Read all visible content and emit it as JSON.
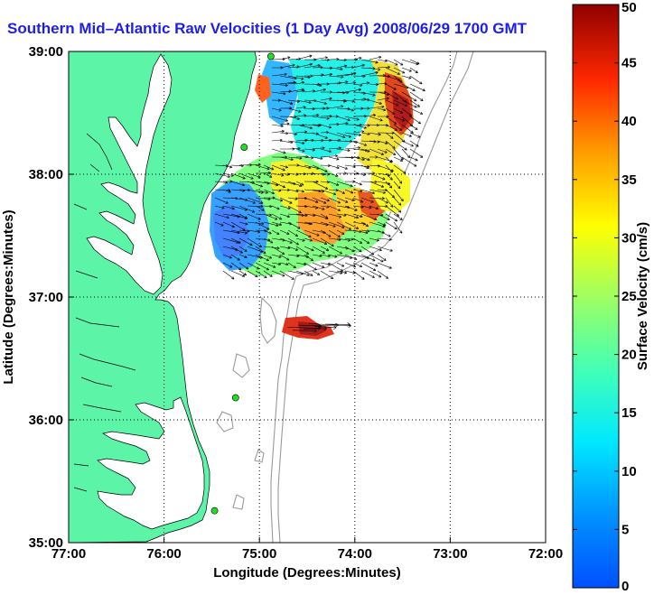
{
  "title": "Southern Mid–Atlantic Raw Velocities (1 Day Avg) 2008/06/29 1700 GMT",
  "map": {
    "xlabel": "Longitude (Degrees:Minutes)",
    "ylabel": "Latitude (Degrees:Minutes)",
    "lon_range": [
      -77,
      -72
    ],
    "lat_range": [
      35,
      39
    ],
    "x_ticks": [
      {
        "value": -77,
        "label": "77:00"
      },
      {
        "value": -76,
        "label": "76:00"
      },
      {
        "value": -75,
        "label": "75:00"
      },
      {
        "value": -74,
        "label": "74:00"
      },
      {
        "value": -73,
        "label": "73:00"
      },
      {
        "value": -72,
        "label": "72:00"
      }
    ],
    "y_ticks": [
      {
        "value": 35,
        "label": "35:00"
      },
      {
        "value": 36,
        "label": "36:00"
      },
      {
        "value": 37,
        "label": "37:00"
      },
      {
        "value": 38,
        "label": "38:00"
      },
      {
        "value": 39,
        "label": "39:00"
      }
    ],
    "grid": "dotted",
    "colors": {
      "land": "#5cf5a8",
      "water": "#ffffff",
      "coastline": "#000000",
      "bathymetry": "#9a9a9a",
      "station": "#22dd22"
    },
    "stations": [
      {
        "lon": -74.88,
        "lat": 38.96
      },
      {
        "lon": -75.16,
        "lat": 38.22
      },
      {
        "lon": -75.25,
        "lat": 36.18
      },
      {
        "lon": -75.47,
        "lat": 35.26
      }
    ]
  },
  "colorbar": {
    "label": "Surface Velocity (cm/s)",
    "min": 0,
    "max": 50,
    "ticks": [
      {
        "value": 0,
        "label": "0"
      },
      {
        "value": 5,
        "label": "5"
      },
      {
        "value": 10,
        "label": "10"
      },
      {
        "value": 15,
        "label": "15"
      },
      {
        "value": 20,
        "label": "20"
      },
      {
        "value": 25,
        "label": "25"
      },
      {
        "value": 30,
        "label": "30"
      },
      {
        "value": 35,
        "label": "35"
      },
      {
        "value": 40,
        "label": "40"
      },
      {
        "value": 45,
        "label": "45"
      },
      {
        "value": 50,
        "label": "50"
      }
    ],
    "colormap": "jet"
  }
}
